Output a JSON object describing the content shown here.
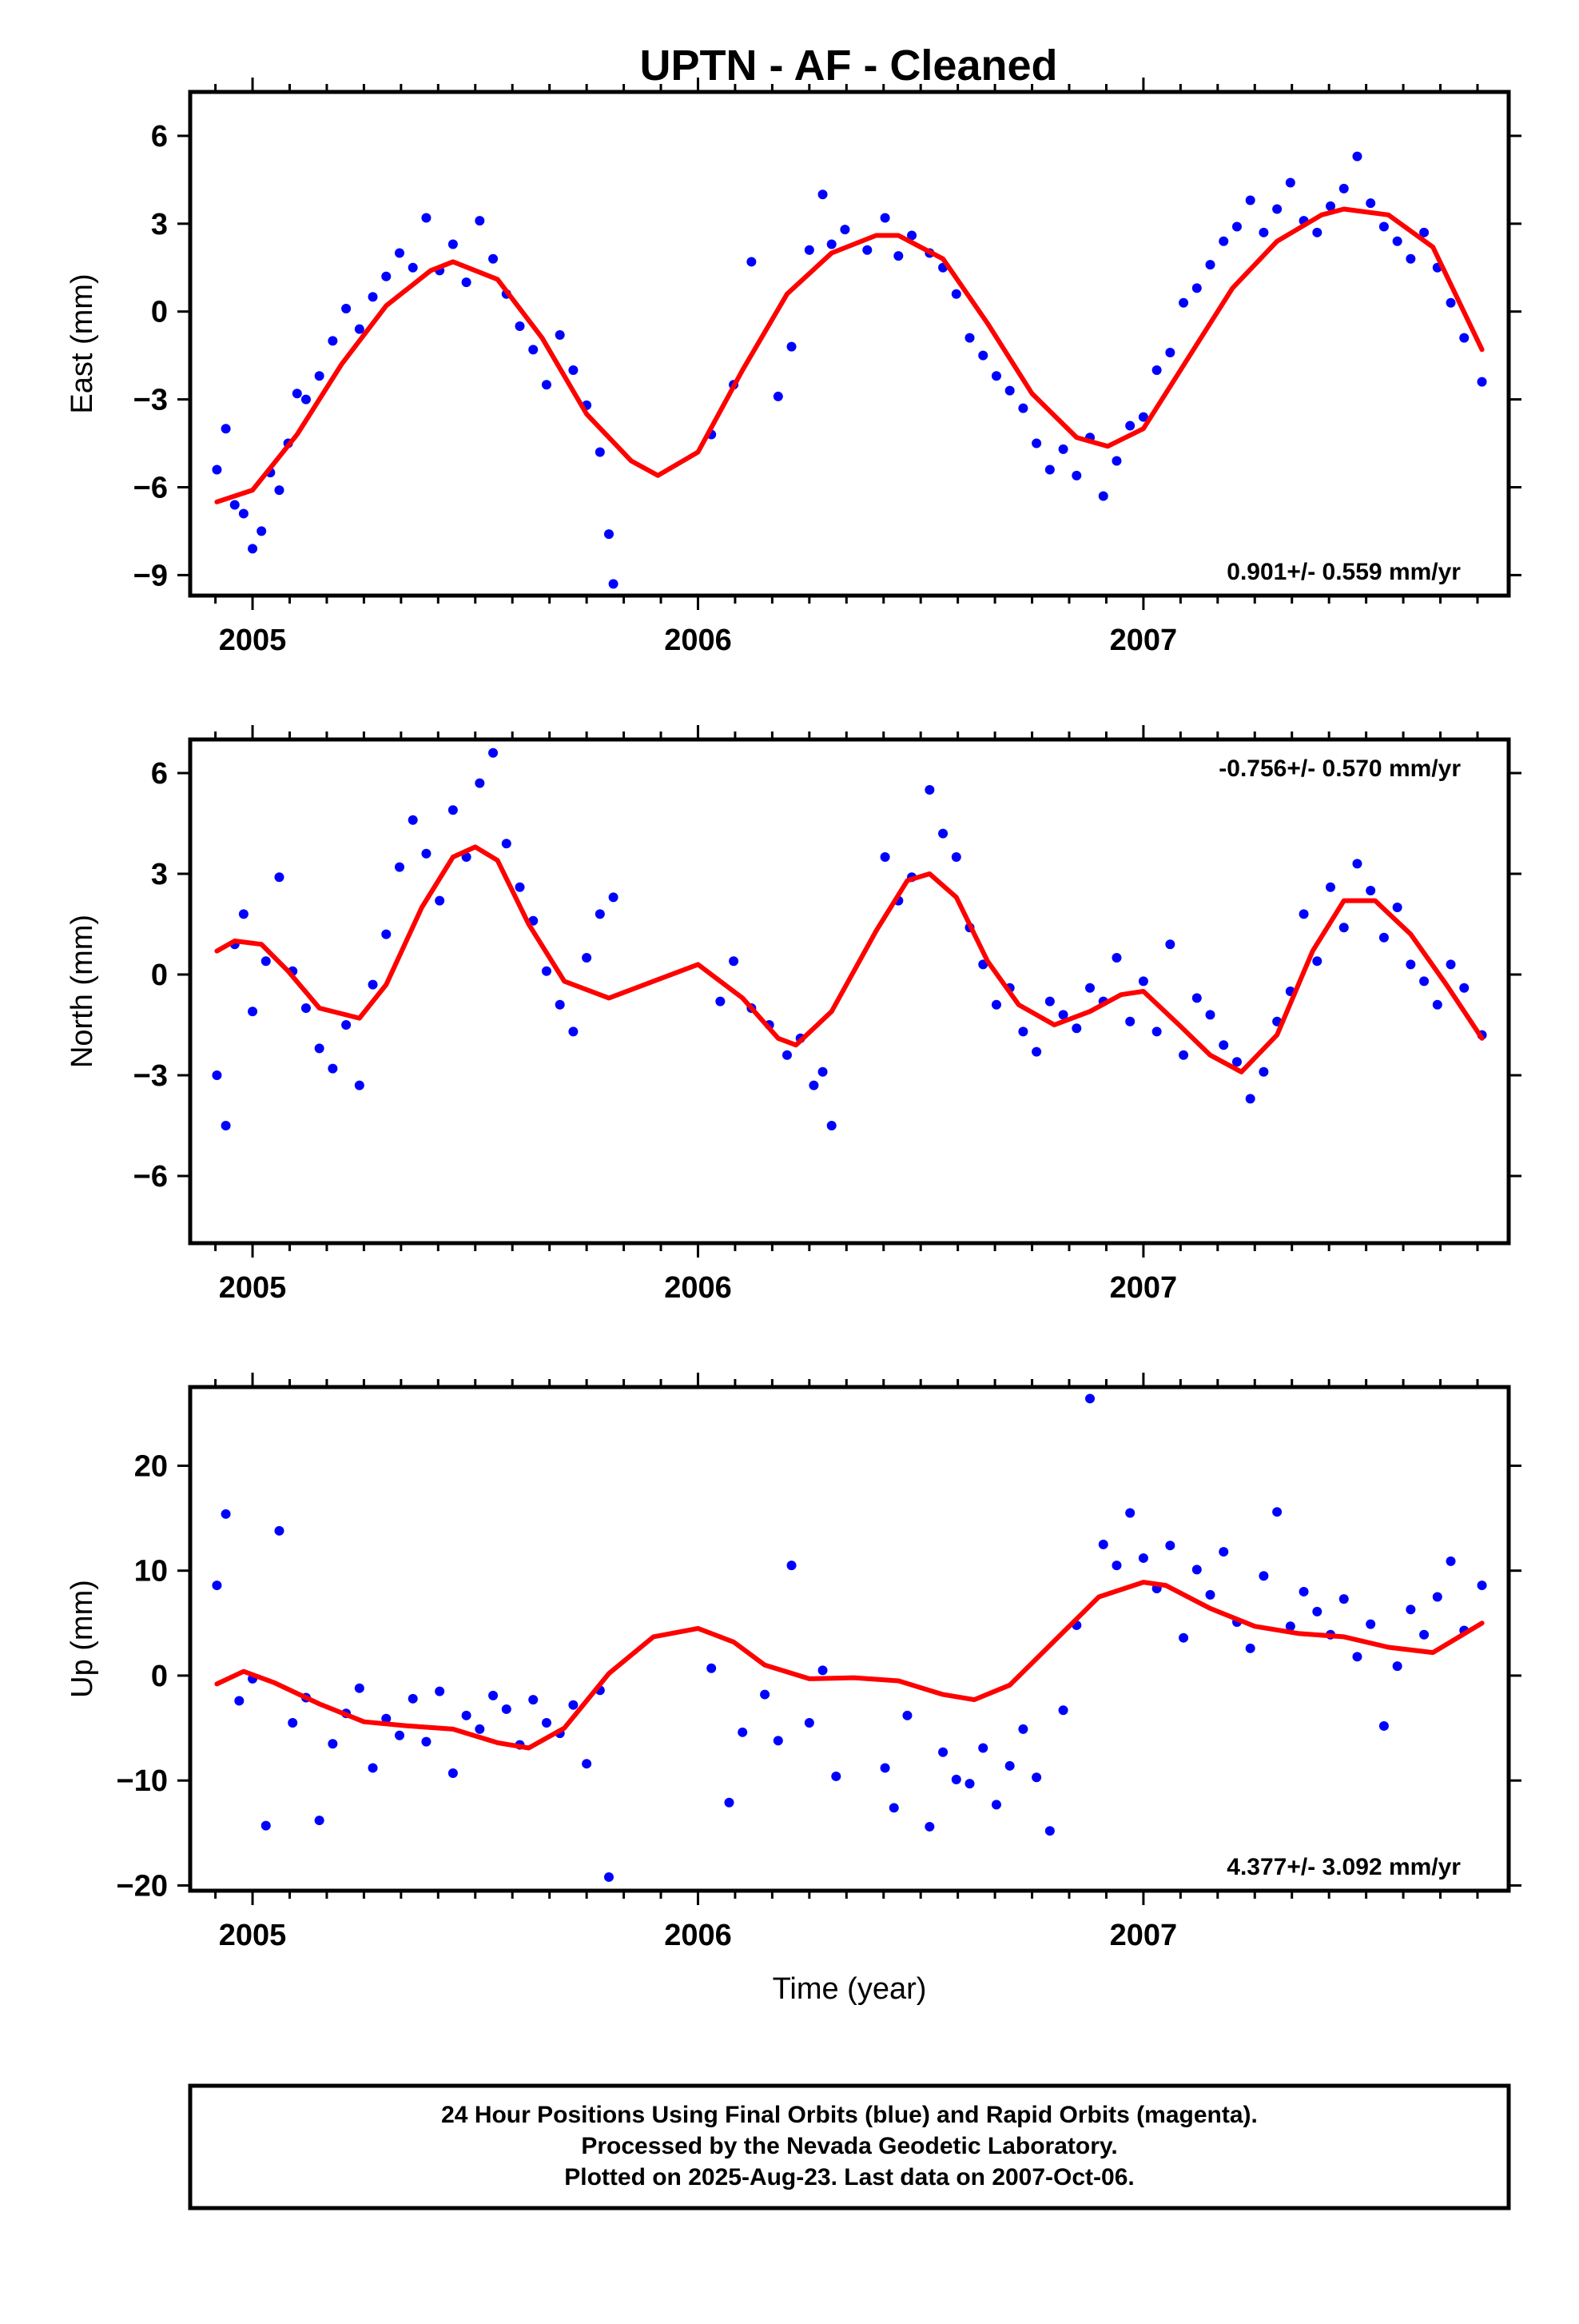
{
  "title": "UPTN  - AF - Cleaned",
  "colors": {
    "points": "#0000ff",
    "fit": "#ff0000",
    "frame": "#000000"
  },
  "chart_data": [
    {
      "type": "scatter",
      "panel": "east",
      "ylabel": "East (mm)",
      "xlabel": "",
      "rate_text": "0.901+/- 0.559 mm/yr",
      "rate_position": "bottom-right",
      "xlim": [
        2004.86,
        2007.82
      ],
      "ylim": [
        -9.7,
        7.5
      ],
      "xticks": [
        2005,
        2006,
        2007
      ],
      "yticks": [
        6,
        3,
        0,
        -3,
        -6,
        -9
      ],
      "grid": false,
      "series": [
        {
          "kind": "points",
          "color": "#0000ff",
          "x": [
            2004.92,
            2004.94,
            2004.96,
            2004.98,
            2005.0,
            2005.02,
            2005.04,
            2005.06,
            2005.08,
            2005.1,
            2005.12,
            2005.15,
            2005.18,
            2005.21,
            2005.24,
            2005.27,
            2005.3,
            2005.33,
            2005.36,
            2005.39,
            2005.42,
            2005.45,
            2005.48,
            2005.51,
            2005.54,
            2005.57,
            2005.6,
            2005.63,
            2005.66,
            2005.69,
            2005.72,
            2005.75,
            2005.78,
            2005.8,
            2005.81,
            2006.03,
            2006.08,
            2006.12,
            2006.18,
            2006.21,
            2006.25,
            2006.28,
            2006.3,
            2006.33,
            2006.38,
            2006.42,
            2006.45,
            2006.48,
            2006.52,
            2006.55,
            2006.58,
            2006.61,
            2006.64,
            2006.67,
            2006.7,
            2006.73,
            2006.76,
            2006.79,
            2006.82,
            2006.85,
            2006.88,
            2006.91,
            2006.94,
            2006.97,
            2007.0,
            2007.03,
            2007.06,
            2007.09,
            2007.12,
            2007.15,
            2007.18,
            2007.21,
            2007.24,
            2007.27,
            2007.3,
            2007.33,
            2007.36,
            2007.39,
            2007.42,
            2007.45,
            2007.48,
            2007.51,
            2007.54,
            2007.57,
            2007.6,
            2007.63,
            2007.66,
            2007.69,
            2007.72,
            2007.76
          ],
          "y": [
            -5.4,
            -4.0,
            -6.6,
            -6.9,
            -8.1,
            -7.5,
            -5.5,
            -6.1,
            -4.5,
            -2.8,
            -3.0,
            -2.2,
            -1.0,
            0.1,
            -0.6,
            0.5,
            1.2,
            2.0,
            1.5,
            3.2,
            1.4,
            2.3,
            1.0,
            3.1,
            1.8,
            0.6,
            -0.5,
            -1.3,
            -2.5,
            -0.8,
            -2.0,
            -3.2,
            -4.8,
            -7.6,
            -9.3,
            -4.2,
            -2.5,
            1.7,
            -2.9,
            -1.2,
            2.1,
            4.0,
            2.3,
            2.8,
            2.1,
            3.2,
            1.9,
            2.6,
            2.0,
            1.5,
            0.6,
            -0.9,
            -1.5,
            -2.2,
            -2.7,
            -3.3,
            -4.5,
            -5.4,
            -4.7,
            -5.6,
            -4.3,
            -6.3,
            -5.1,
            -3.9,
            -3.6,
            -2.0,
            -1.4,
            0.3,
            0.8,
            1.6,
            2.4,
            2.9,
            3.8,
            2.7,
            3.5,
            4.4,
            3.1,
            2.7,
            3.6,
            4.2,
            5.3,
            3.7,
            2.9,
            2.4,
            1.8,
            2.7,
            1.5,
            0.3,
            -0.9,
            -2.4
          ]
        },
        {
          "kind": "fit",
          "color": "#ff0000",
          "x": [
            2004.92,
            2005.0,
            2005.1,
            2005.2,
            2005.3,
            2005.4,
            2005.45,
            2005.55,
            2005.65,
            2005.75,
            2005.85,
            2005.91,
            2006.0,
            2006.1,
            2006.2,
            2006.3,
            2006.4,
            2006.45,
            2006.55,
            2006.65,
            2006.75,
            2006.85,
            2006.92,
            2007.0,
            2007.1,
            2007.2,
            2007.3,
            2007.4,
            2007.45,
            2007.55,
            2007.65,
            2007.76
          ],
          "y": [
            -6.5,
            -6.1,
            -4.2,
            -1.8,
            0.2,
            1.4,
            1.7,
            1.1,
            -0.9,
            -3.5,
            -5.1,
            -5.6,
            -4.8,
            -2.0,
            0.6,
            2.0,
            2.6,
            2.6,
            1.8,
            -0.4,
            -2.8,
            -4.3,
            -4.6,
            -4.0,
            -1.6,
            0.8,
            2.4,
            3.3,
            3.5,
            3.3,
            2.2,
            -1.3
          ]
        }
      ]
    },
    {
      "type": "scatter",
      "panel": "north",
      "ylabel": "North (mm)",
      "xlabel": "",
      "rate_text": "-0.756+/- 0.570 mm/yr",
      "rate_position": "top-right",
      "xlim": [
        2004.86,
        2007.82
      ],
      "ylim": [
        -8.0,
        7.0
      ],
      "xticks": [
        2005,
        2006,
        2007
      ],
      "yticks": [
        6,
        3,
        0,
        -3,
        -6
      ],
      "grid": false,
      "series": [
        {
          "kind": "points",
          "color": "#0000ff",
          "x": [
            2004.92,
            2004.94,
            2004.96,
            2004.98,
            2005.0,
            2005.03,
            2005.06,
            2005.09,
            2005.12,
            2005.15,
            2005.18,
            2005.21,
            2005.24,
            2005.27,
            2005.3,
            2005.33,
            2005.36,
            2005.39,
            2005.42,
            2005.45,
            2005.48,
            2005.51,
            2005.54,
            2005.57,
            2005.6,
            2005.63,
            2005.66,
            2005.69,
            2005.72,
            2005.75,
            2005.78,
            2005.81,
            2006.05,
            2006.08,
            2006.12,
            2006.16,
            2006.2,
            2006.23,
            2006.26,
            2006.28,
            2006.3,
            2006.42,
            2006.45,
            2006.48,
            2006.52,
            2006.55,
            2006.58,
            2006.61,
            2006.64,
            2006.67,
            2006.7,
            2006.73,
            2006.76,
            2006.79,
            2006.82,
            2006.85,
            2006.88,
            2006.91,
            2006.94,
            2006.97,
            2007.0,
            2007.03,
            2007.06,
            2007.09,
            2007.12,
            2007.15,
            2007.18,
            2007.21,
            2007.24,
            2007.27,
            2007.3,
            2007.33,
            2007.36,
            2007.39,
            2007.42,
            2007.45,
            2007.48,
            2007.51,
            2007.54,
            2007.57,
            2007.6,
            2007.63,
            2007.66,
            2007.69,
            2007.72,
            2007.76
          ],
          "y": [
            -3.0,
            -4.5,
            0.9,
            1.8,
            -1.1,
            0.4,
            2.9,
            0.1,
            -1.0,
            -2.2,
            -2.8,
            -1.5,
            -3.3,
            -0.3,
            1.2,
            3.2,
            4.6,
            3.6,
            2.2,
            4.9,
            3.5,
            5.7,
            6.6,
            3.9,
            2.6,
            1.6,
            0.1,
            -0.9,
            -1.7,
            0.5,
            1.8,
            2.3,
            -0.8,
            0.4,
            -1.0,
            -1.5,
            -2.4,
            -1.9,
            -3.3,
            -2.9,
            -4.5,
            3.5,
            2.2,
            2.9,
            5.5,
            4.2,
            3.5,
            1.4,
            0.3,
            -0.9,
            -0.4,
            -1.7,
            -2.3,
            -0.8,
            -1.2,
            -1.6,
            -0.4,
            -0.8,
            0.5,
            -1.4,
            -0.2,
            -1.7,
            0.9,
            -2.4,
            -0.7,
            -1.2,
            -2.1,
            -2.6,
            -3.7,
            -2.9,
            -1.4,
            -0.5,
            1.8,
            0.4,
            2.6,
            1.4,
            3.3,
            2.5,
            1.1,
            2.0,
            0.3,
            -0.2,
            -0.9,
            0.3,
            -0.4,
            -1.8
          ]
        },
        {
          "kind": "fit",
          "color": "#ff0000",
          "x": [
            2004.92,
            2004.96,
            2005.02,
            2005.08,
            2005.15,
            2005.24,
            2005.3,
            2005.38,
            2005.45,
            2005.5,
            2005.55,
            2005.62,
            2005.7,
            2005.8,
            2005.9,
            2006.0,
            2006.1,
            2006.18,
            2006.22,
            2006.3,
            2006.4,
            2006.47,
            2006.52,
            2006.58,
            2006.65,
            2006.72,
            2006.8,
            2006.88,
            2006.95,
            2007.0,
            2007.08,
            2007.15,
            2007.22,
            2007.3,
            2007.38,
            2007.45,
            2007.52,
            2007.6,
            2007.68,
            2007.76
          ],
          "y": [
            0.7,
            1.0,
            0.9,
            0.1,
            -1.0,
            -1.3,
            -0.3,
            2.0,
            3.5,
            3.8,
            3.4,
            1.5,
            -0.2,
            -0.7,
            -0.2,
            0.3,
            -0.7,
            -1.9,
            -2.1,
            -1.1,
            1.3,
            2.8,
            3.0,
            2.3,
            0.4,
            -0.9,
            -1.5,
            -1.1,
            -0.6,
            -0.5,
            -1.5,
            -2.4,
            -2.9,
            -1.8,
            0.7,
            2.2,
            2.2,
            1.2,
            -0.3,
            -1.9
          ]
        }
      ]
    },
    {
      "type": "scatter",
      "panel": "up",
      "ylabel": "Up (mm)",
      "xlabel": "Time (year)",
      "rate_text": "4.377+/- 3.092 mm/yr",
      "rate_position": "bottom-right",
      "xlim": [
        2004.86,
        2007.82
      ],
      "ylim": [
        -20.5,
        27.5
      ],
      "xticks": [
        2005,
        2006,
        2007
      ],
      "yticks": [
        20,
        10,
        0,
        -10,
        -20
      ],
      "grid": false,
      "series": [
        {
          "kind": "points",
          "color": "#0000ff",
          "x": [
            2004.92,
            2004.94,
            2004.97,
            2005.0,
            2005.03,
            2005.06,
            2005.09,
            2005.12,
            2005.15,
            2005.18,
            2005.21,
            2005.24,
            2005.27,
            2005.3,
            2005.33,
            2005.36,
            2005.39,
            2005.42,
            2005.45,
            2005.48,
            2005.51,
            2005.54,
            2005.57,
            2005.6,
            2005.63,
            2005.66,
            2005.69,
            2005.72,
            2005.75,
            2005.78,
            2005.8,
            2006.03,
            2006.07,
            2006.1,
            2006.15,
            2006.18,
            2006.21,
            2006.25,
            2006.28,
            2006.31,
            2006.42,
            2006.44,
            2006.47,
            2006.52,
            2006.55,
            2006.58,
            2006.61,
            2006.64,
            2006.67,
            2006.7,
            2006.73,
            2006.76,
            2006.79,
            2006.82,
            2006.85,
            2006.88,
            2006.91,
            2006.94,
            2006.97,
            2007.0,
            2007.03,
            2007.06,
            2007.09,
            2007.12,
            2007.15,
            2007.18,
            2007.21,
            2007.24,
            2007.27,
            2007.3,
            2007.33,
            2007.36,
            2007.39,
            2007.42,
            2007.45,
            2007.48,
            2007.51,
            2007.54,
            2007.57,
            2007.6,
            2007.63,
            2007.66,
            2007.69,
            2007.72,
            2007.76
          ],
          "y": [
            8.6,
            15.4,
            -2.4,
            -0.3,
            -14.3,
            13.8,
            -4.5,
            -2.1,
            -13.8,
            -6.5,
            -3.6,
            -1.2,
            -8.8,
            -4.1,
            -5.7,
            -2.2,
            -6.3,
            -1.5,
            -9.3,
            -3.8,
            -5.1,
            -1.9,
            -3.2,
            -6.6,
            -2.3,
            -4.5,
            -5.5,
            -2.8,
            -8.4,
            -1.4,
            -19.2,
            0.7,
            -12.1,
            -5.4,
            -1.8,
            -6.2,
            10.5,
            -4.5,
            0.5,
            -9.6,
            -8.8,
            -12.6,
            -3.8,
            -14.4,
            -7.3,
            -9.9,
            -10.3,
            -6.9,
            -12.3,
            -8.6,
            -5.1,
            -9.7,
            -14.8,
            -3.3,
            4.8,
            26.4,
            12.5,
            10.5,
            15.5,
            11.2,
            8.3,
            12.4,
            3.6,
            10.1,
            7.7,
            11.8,
            5.1,
            2.6,
            9.5,
            15.6,
            4.7,
            8.0,
            6.1,
            3.9,
            7.3,
            1.8,
            4.9,
            -4.8,
            0.9,
            6.3,
            3.9,
            7.5,
            10.9,
            4.3,
            8.6
          ]
        },
        {
          "kind": "fit",
          "color": "#ff0000",
          "x": [
            2004.92,
            2004.98,
            2005.05,
            2005.15,
            2005.25,
            2005.35,
            2005.45,
            2005.55,
            2005.62,
            2005.7,
            2005.8,
            2005.9,
            2006.0,
            2006.08,
            2006.15,
            2006.25,
            2006.35,
            2006.45,
            2006.55,
            2006.62,
            2006.7,
            2006.8,
            2006.9,
            2007.0,
            2007.05,
            2007.15,
            2007.25,
            2007.35,
            2007.45,
            2007.55,
            2007.65,
            2007.76
          ],
          "y": [
            -0.8,
            0.4,
            -0.7,
            -2.7,
            -4.4,
            -4.8,
            -5.1,
            -6.4,
            -6.9,
            -5.0,
            0.2,
            3.7,
            4.5,
            3.2,
            1.0,
            -0.3,
            -0.2,
            -0.5,
            -1.8,
            -2.3,
            -0.9,
            3.3,
            7.5,
            8.9,
            8.6,
            6.4,
            4.7,
            4.0,
            3.7,
            2.7,
            2.2,
            5.0
          ]
        }
      ]
    }
  ],
  "footer": {
    "line1": "24 Hour Positions Using Final Orbits (blue) and Rapid Orbits (magenta).",
    "line2": "Processed by the Nevada Geodetic Laboratory.",
    "line3": "Plotted on 2025-Aug-23. Last data on 2007-Oct-06."
  }
}
